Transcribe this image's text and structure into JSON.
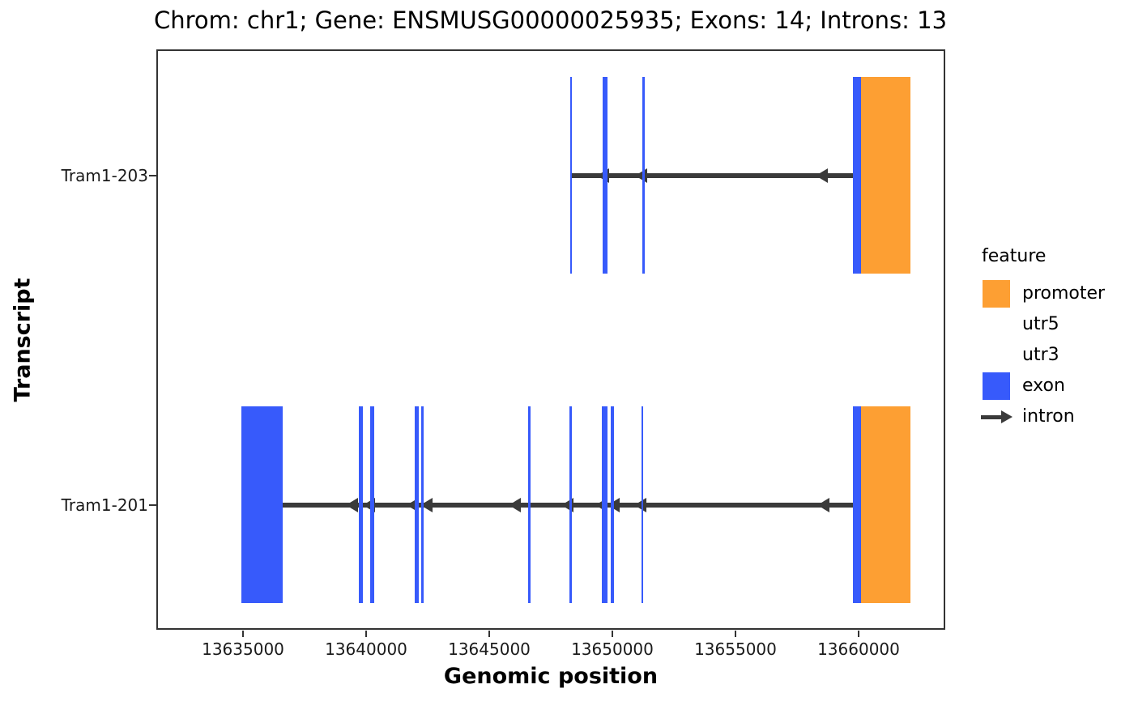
{
  "title": "Chrom: chr1; Gene: ENSMUSG00000025935; Exons: 14; Introns: 13",
  "axes": {
    "x": {
      "label": "Genomic position",
      "min": 13631480,
      "max": 13663520,
      "ticks": [
        13635000,
        13640000,
        13645000,
        13650000,
        13655000,
        13660000
      ]
    },
    "y": {
      "label": "Transcript",
      "categories": [
        "Tram1-203",
        "Tram1-201"
      ]
    }
  },
  "legend": {
    "title": "feature",
    "items": [
      {
        "label": "promoter",
        "key": "rect",
        "color": "#FD9F33"
      },
      {
        "label": "utr5",
        "key": "none",
        "color": ""
      },
      {
        "label": "utr3",
        "key": "none",
        "color": ""
      },
      {
        "label": "exon",
        "key": "rect",
        "color": "#375AFB"
      },
      {
        "label": "intron",
        "key": "arrow",
        "color": "#3A3A3A"
      }
    ]
  },
  "colors": {
    "exon": "#375AFB",
    "promoter": "#FD9F33",
    "intron": "#3A3A3A",
    "panel_border": "#333333",
    "text": "#000000"
  },
  "chart_data": {
    "type": "gene-model",
    "chromosome": "chr1",
    "gene_id": "ENSMUSG00000025935",
    "exon_count": 14,
    "intron_count": 13,
    "strand": "-",
    "transcripts": [
      {
        "name": "Tram1-203",
        "intron_line": [
          13648300,
          13659860
        ],
        "exons": [
          [
            13648300,
            13648360
          ],
          [
            13649610,
            13649800
          ],
          [
            13651230,
            13651320
          ],
          [
            13659780,
            13660100
          ]
        ],
        "promoter": [
          13660100,
          13662100
        ],
        "arrows": [
          13649600,
          13651150,
          13658480
        ]
      },
      {
        "name": "Tram1-201",
        "intron_line": [
          13636560,
          13659860
        ],
        "exons": [
          [
            13634920,
            13636610
          ],
          [
            13639710,
            13639880
          ],
          [
            13640150,
            13640320
          ],
          [
            13641960,
            13642130
          ],
          [
            13642240,
            13642340
          ],
          [
            13646570,
            13646680
          ],
          [
            13648270,
            13648360
          ],
          [
            13649580,
            13649800
          ],
          [
            13649940,
            13650080
          ],
          [
            13651170,
            13651250
          ],
          [
            13659780,
            13660100
          ]
        ],
        "promoter": [
          13660100,
          13662100
        ],
        "arrows": [
          13639410,
          13640100,
          13641870,
          13642430,
          13646020,
          13648160,
          13649540,
          13650030,
          13651120,
          13658550
        ]
      }
    ]
  }
}
